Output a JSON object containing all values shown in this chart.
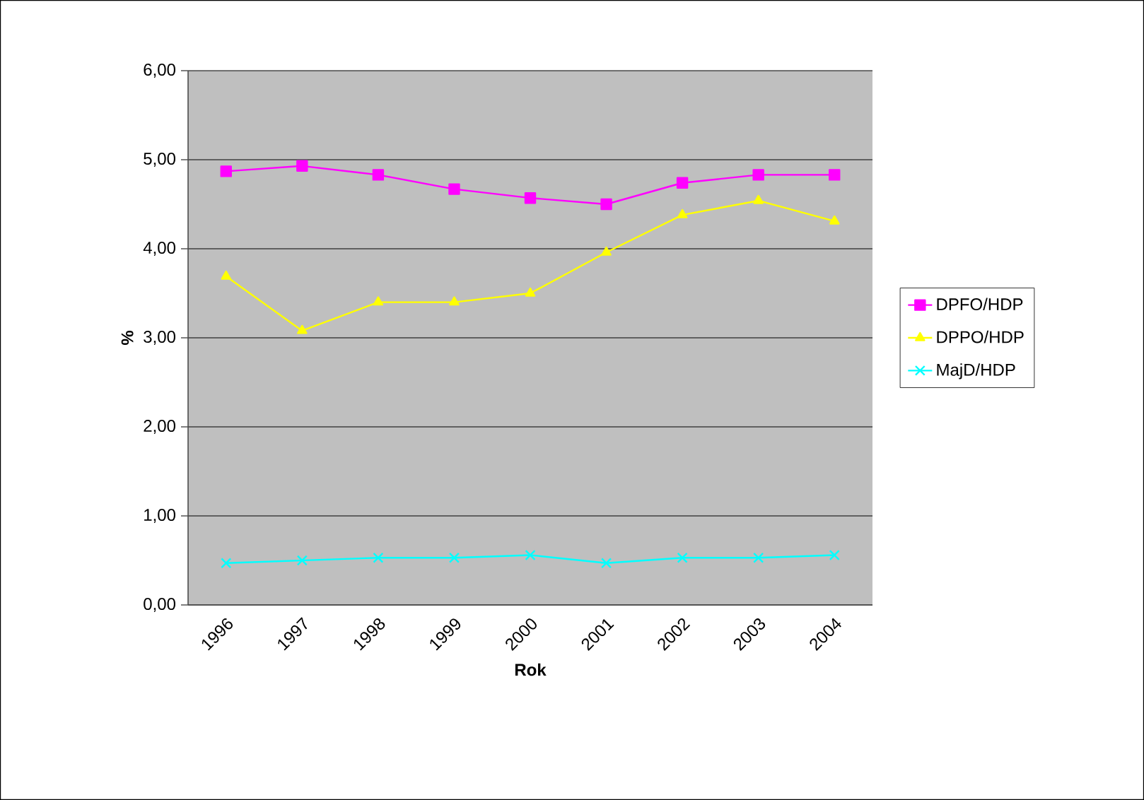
{
  "chart_data": {
    "type": "line",
    "xlabel": "Rok",
    "ylabel": "%",
    "categories": [
      "1996",
      "1997",
      "1998",
      "1999",
      "2000",
      "2001",
      "2002",
      "2003",
      "2004"
    ],
    "ylim": [
      0,
      6
    ],
    "yticks": [
      {
        "value": 0,
        "label": "0,00"
      },
      {
        "value": 1,
        "label": "1,00"
      },
      {
        "value": 2,
        "label": "2,00"
      },
      {
        "value": 3,
        "label": "3,00"
      },
      {
        "value": 4,
        "label": "4,00"
      },
      {
        "value": 5,
        "label": "5,00"
      },
      {
        "value": 6,
        "label": "6,00"
      }
    ],
    "grid": "y",
    "legend": "right",
    "line_style": "solid",
    "series": [
      {
        "name": "DPFO/HDP",
        "color": "#ff00ff",
        "marker": "square",
        "values": [
          4.87,
          4.93,
          4.83,
          4.67,
          4.57,
          4.5,
          4.74,
          4.83,
          4.83
        ]
      },
      {
        "name": "DPPO/HDP",
        "color": "#ffff00",
        "marker": "triangle",
        "values": [
          3.69,
          3.08,
          3.4,
          3.4,
          3.5,
          3.96,
          4.38,
          4.54,
          4.31
        ]
      },
      {
        "name": "MajD/HDP",
        "color": "#00ffff",
        "marker": "cross",
        "values": [
          0.47,
          0.5,
          0.53,
          0.53,
          0.56,
          0.47,
          0.53,
          0.53,
          0.56
        ]
      }
    ]
  }
}
